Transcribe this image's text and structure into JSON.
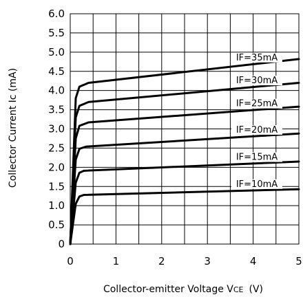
{
  "chart_data": {
    "type": "line",
    "xlabel": "Collector-emitter Voltage VCE (V)",
    "xlabel_main": "Collector-emitter Voltage V",
    "xlabel_sub": "CE",
    "xlabel_unit": "(V)",
    "ylabel": "Collector Current Ic (mA)",
    "xlim": [
      0,
      5
    ],
    "ylim": [
      0,
      6
    ],
    "grid": true,
    "x_ticks": [
      "0",
      "1",
      "2",
      "3",
      "4",
      "5"
    ],
    "y_ticks": [
      "0",
      "0.5",
      "1.0",
      "1.5",
      "2.0",
      "2.5",
      "3.0",
      "3.5",
      "4.0",
      "4.5",
      "5.0",
      "5.5",
      "6.0"
    ],
    "series": [
      {
        "name": "IF=10mA",
        "x": [
          0,
          0.12,
          0.2,
          0.3,
          5
        ],
        "y": [
          0,
          1.05,
          1.24,
          1.28,
          1.43
        ]
      },
      {
        "name": "IF=15mA",
        "x": [
          0,
          0.12,
          0.2,
          0.3,
          5
        ],
        "y": [
          0,
          1.6,
          1.86,
          1.91,
          2.15
        ]
      },
      {
        "name": "IF=20mA",
        "x": [
          0,
          0.12,
          0.2,
          0.35,
          5
        ],
        "y": [
          0,
          2.2,
          2.48,
          2.54,
          2.88
        ]
      },
      {
        "name": "IF=25mA",
        "x": [
          0,
          0.12,
          0.2,
          0.4,
          5
        ],
        "y": [
          0,
          2.75,
          3.08,
          3.17,
          3.58
        ]
      },
      {
        "name": "IF=30mA",
        "x": [
          0,
          0.12,
          0.2,
          0.4,
          5
        ],
        "y": [
          0,
          3.3,
          3.6,
          3.7,
          4.2
        ]
      },
      {
        "name": "IF=35mA",
        "x": [
          0,
          0.12,
          0.2,
          0.4,
          5
        ],
        "y": [
          0,
          3.8,
          4.1,
          4.2,
          4.82
        ]
      }
    ]
  }
}
